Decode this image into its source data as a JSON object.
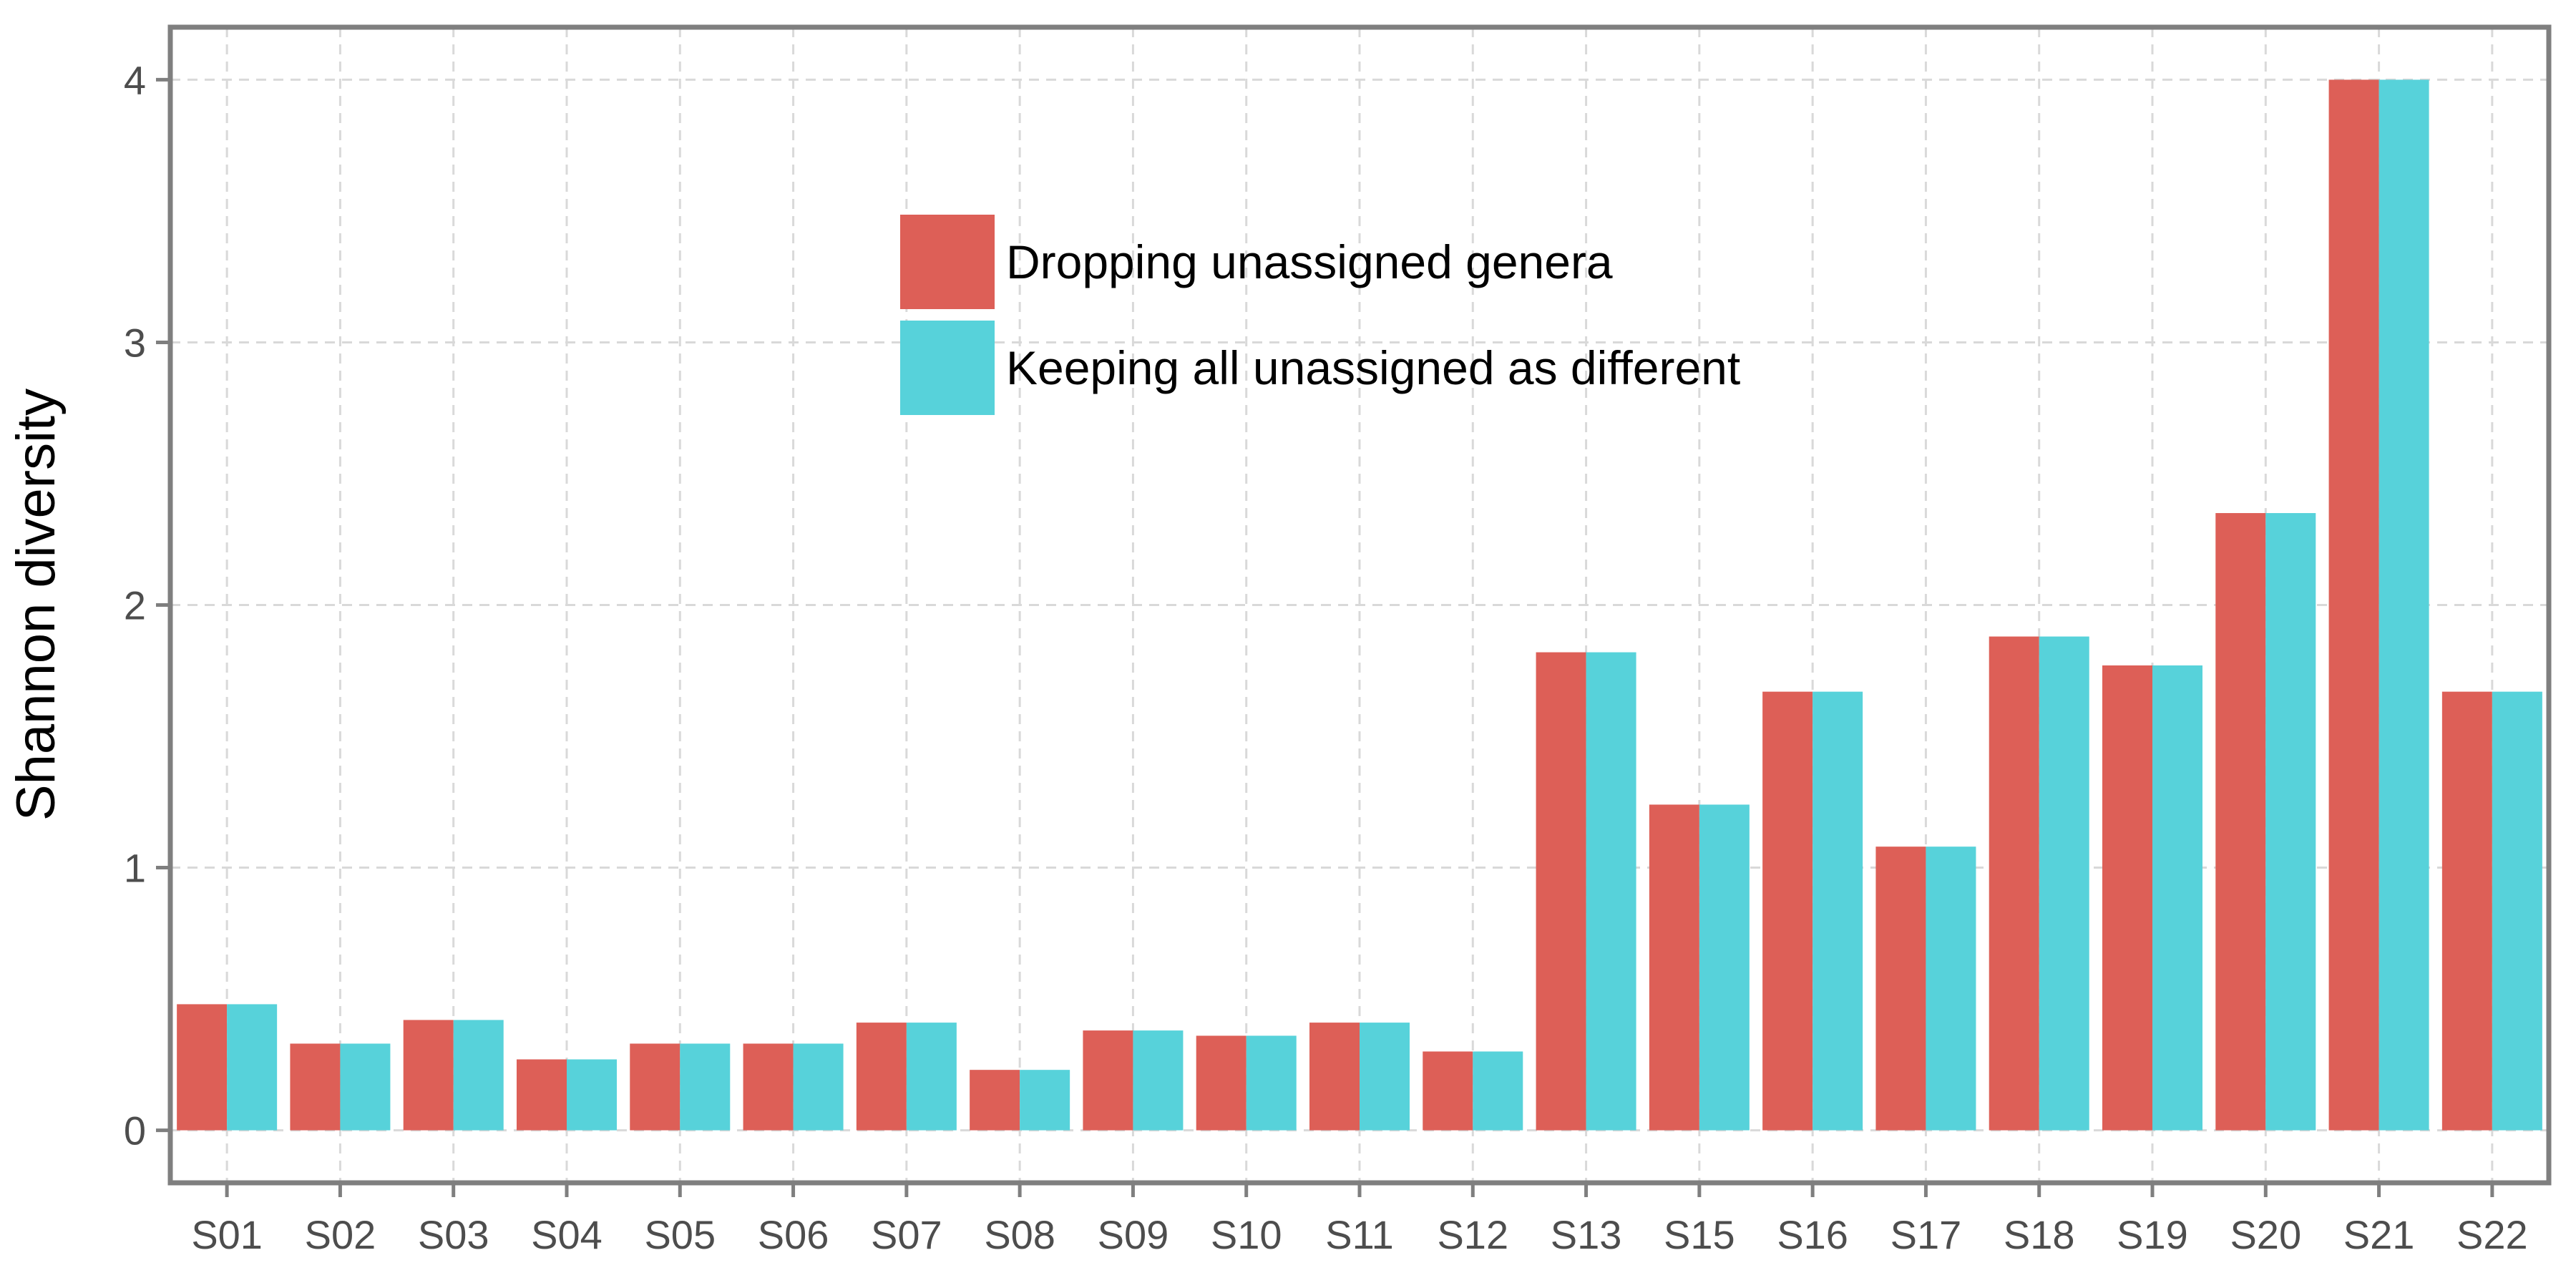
{
  "chart_data": {
    "type": "bar",
    "title": "",
    "xlabel": "",
    "ylabel": "Shannon diversity",
    "ylim": [
      -0.2,
      4.2
    ],
    "yticks": [
      0,
      1,
      2,
      3,
      4
    ],
    "grid": true,
    "legend_position": "top-center",
    "categories": [
      "S01",
      "S02",
      "S03",
      "S04",
      "S05",
      "S06",
      "S07",
      "S08",
      "S09",
      "S10",
      "S11",
      "S12",
      "S13",
      "S15",
      "S16",
      "S17",
      "S18",
      "S19",
      "S20",
      "S21",
      "S22"
    ],
    "series": [
      {
        "name": "Dropping unassigned genera",
        "color": "#dd5f57",
        "values": [
          0.48,
          0.33,
          0.42,
          0.27,
          0.33,
          0.33,
          0.41,
          0.23,
          0.38,
          0.36,
          0.41,
          0.3,
          1.82,
          1.24,
          1.67,
          1.08,
          1.88,
          1.77,
          2.35,
          4.0,
          1.67
        ]
      },
      {
        "name": "Keeping all unassigned as different",
        "color": "#57d2da",
        "values": [
          0.48,
          0.33,
          0.42,
          0.27,
          0.33,
          0.33,
          0.41,
          0.23,
          0.38,
          0.36,
          0.41,
          0.3,
          1.82,
          1.24,
          1.67,
          1.08,
          1.88,
          1.77,
          2.35,
          4.0,
          1.67
        ]
      }
    ]
  }
}
